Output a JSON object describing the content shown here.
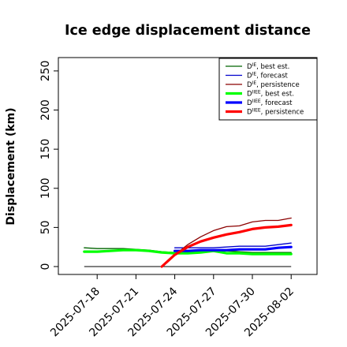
{
  "chart_data": {
    "type": "line",
    "title": "Ice edge displacement distance",
    "xlabel": "",
    "ylabel": "Displacement (km)",
    "xlim": [
      "2025-07-15",
      "2025-08-04"
    ],
    "ylim": [
      0,
      260
    ],
    "yticks": [
      0,
      50,
      100,
      150,
      200,
      250
    ],
    "xticks": [
      {
        "date": "2025-07-18",
        "label": "2025-07-18",
        "color": "#000000"
      },
      {
        "date": "2025-07-21",
        "label": "2025-07-21",
        "color": "#000000"
      },
      {
        "date": "2025-07-24",
        "label": "2025-07-24",
        "color": "#008000"
      },
      {
        "date": "2025-07-27",
        "label": "2025-07-27",
        "color": "#000000"
      },
      {
        "date": "2025-07-30",
        "label": "2025-07-30",
        "color": "#000000"
      },
      {
        "date": "2025-08-02",
        "label": "2025-08-02",
        "color": "#000000"
      }
    ],
    "grid": false,
    "legend_position": "top-right",
    "reference_line": {
      "y": 0,
      "x_start": "2025-07-17",
      "x_end": "2025-08-02",
      "color": "#000000"
    },
    "series": [
      {
        "name_main": "D",
        "name_sup": "IE",
        "name_rest": ", best est.",
        "color": "#006400",
        "width": 1.3,
        "x": [
          "2025-07-17",
          "2025-07-18",
          "2025-07-19",
          "2025-07-20",
          "2025-07-21",
          "2025-07-22",
          "2025-07-23",
          "2025-07-24",
          "2025-07-25",
          "2025-07-26",
          "2025-07-27",
          "2025-07-28",
          "2025-07-29",
          "2025-07-30",
          "2025-07-31",
          "2025-08-01",
          "2025-08-02"
        ],
        "y": [
          24,
          23,
          23,
          23,
          22,
          21,
          19,
          18,
          19,
          20,
          20,
          20,
          19,
          18,
          18,
          18,
          18
        ]
      },
      {
        "name_main": "D",
        "name_sup": "IE",
        "name_rest": ", forecast",
        "color": "#0000cd",
        "width": 1.3,
        "x": [
          "2025-07-24",
          "2025-07-25",
          "2025-07-26",
          "2025-07-27",
          "2025-07-28",
          "2025-07-29",
          "2025-07-30",
          "2025-07-31",
          "2025-08-01",
          "2025-08-02"
        ],
        "y": [
          24,
          24,
          24,
          24,
          25,
          26,
          26,
          26,
          28,
          30
        ]
      },
      {
        "name_main": "D",
        "name_sup": "IE",
        "name_rest": ", persistence",
        "color": "#8b0000",
        "width": 1.3,
        "x": [
          "2025-07-23",
          "2025-07-24",
          "2025-07-25",
          "2025-07-26",
          "2025-07-27",
          "2025-07-28",
          "2025-07-29",
          "2025-07-30",
          "2025-07-31",
          "2025-08-01",
          "2025-08-02"
        ],
        "y": [
          0,
          15,
          28,
          38,
          46,
          51,
          52,
          57,
          59,
          59,
          62
        ]
      },
      {
        "name_main": "D",
        "name_sup": "IIEE",
        "name_rest": ", best est.",
        "color": "#00ff00",
        "width": 3.2,
        "x": [
          "2025-07-17",
          "2025-07-18",
          "2025-07-19",
          "2025-07-20",
          "2025-07-21",
          "2025-07-22",
          "2025-07-23",
          "2025-07-24",
          "2025-07-25",
          "2025-07-26",
          "2025-07-27",
          "2025-07-28",
          "2025-07-29",
          "2025-07-30",
          "2025-07-31",
          "2025-08-01",
          "2025-08-02"
        ],
        "y": [
          19,
          19,
          20,
          21,
          21,
          20,
          18,
          17,
          17,
          18,
          20,
          17,
          17,
          16,
          16,
          16,
          16
        ]
      },
      {
        "name_main": "D",
        "name_sup": "IIEE",
        "name_rest": ", forecast",
        "color": "#0000ff",
        "width": 3.2,
        "x": [
          "2025-07-24",
          "2025-07-25",
          "2025-07-26",
          "2025-07-27",
          "2025-07-28",
          "2025-07-29",
          "2025-07-30",
          "2025-07-31",
          "2025-08-01",
          "2025-08-02"
        ],
        "y": [
          20,
          20,
          21,
          21,
          21,
          22,
          22,
          22,
          24,
          25
        ]
      },
      {
        "name_main": "D",
        "name_sup": "IIEE",
        "name_rest": ", persistence",
        "color": "#ff0000",
        "width": 3.2,
        "x": [
          "2025-07-23",
          "2025-07-24",
          "2025-07-25",
          "2025-07-26",
          "2025-07-27",
          "2025-07-28",
          "2025-07-29",
          "2025-07-30",
          "2025-07-31",
          "2025-08-01",
          "2025-08-02"
        ],
        "y": [
          0,
          15,
          25,
          32,
          37,
          41,
          44,
          48,
          50,
          51,
          53
        ]
      }
    ]
  }
}
